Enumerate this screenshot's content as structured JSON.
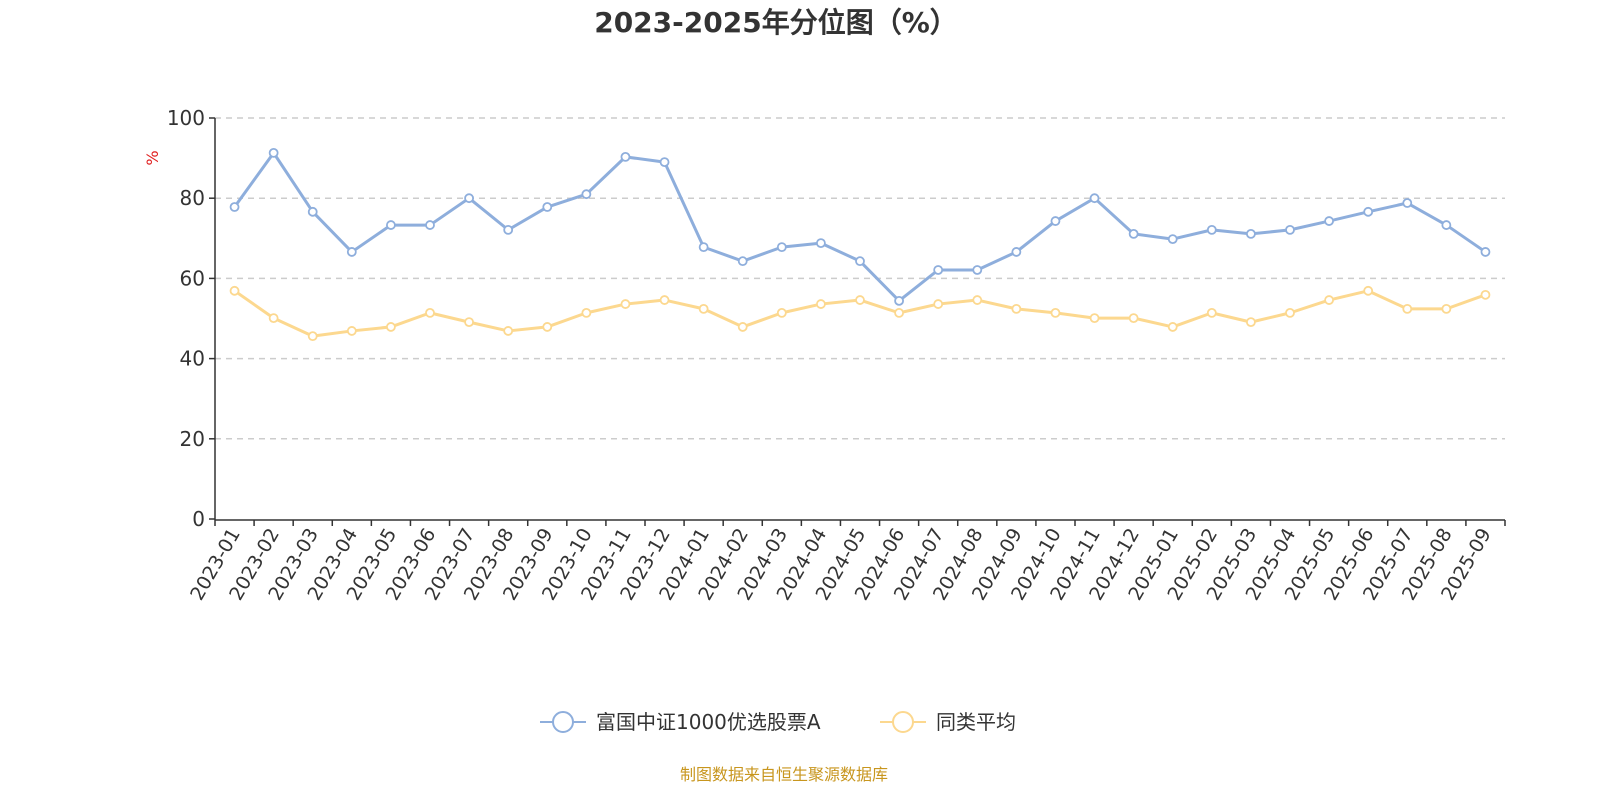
{
  "chart_data": {
    "type": "line",
    "title": "2023-2025年分位图（%）",
    "ylabel": "%",
    "xlabel": "",
    "ylim": [
      0,
      100
    ],
    "yticks": [
      0,
      20,
      40,
      60,
      80,
      100
    ],
    "grid": true,
    "legend_position": "bottom-center",
    "categories": [
      "2023-01",
      "2023-02",
      "2023-03",
      "2023-04",
      "2023-05",
      "2023-06",
      "2023-07",
      "2023-08",
      "2023-09",
      "2023-10",
      "2023-11",
      "2023-12",
      "2024-01",
      "2024-02",
      "2024-03",
      "2024-04",
      "2024-05",
      "2024-06",
      "2024-07",
      "2024-08",
      "2024-09",
      "2024-10",
      "2024-11",
      "2024-12",
      "2025-01",
      "2025-02",
      "2025-03",
      "2025-04",
      "2025-05",
      "2025-06",
      "2025-07",
      "2025-08",
      "2025-09"
    ],
    "series": [
      {
        "name": "富国中证1000优选股票A",
        "color": "#8eaedc",
        "values": [
          77.8,
          91.3,
          76.6,
          66.6,
          73.3,
          73.3,
          80.0,
          72.1,
          77.8,
          81.0,
          90.3,
          89.0,
          67.8,
          64.3,
          67.8,
          68.8,
          64.3,
          54.4,
          62.1,
          62.1,
          66.6,
          74.3,
          80.0,
          71.1,
          69.8,
          72.1,
          71.1,
          72.1,
          74.3,
          76.6,
          78.8,
          73.3,
          66.6
        ]
      },
      {
        "name": "同类平均",
        "color": "#fcd88f",
        "values": [
          56.9,
          50.1,
          45.6,
          46.9,
          47.9,
          51.4,
          49.1,
          46.9,
          47.9,
          51.4,
          53.6,
          54.6,
          52.4,
          47.9,
          51.4,
          53.6,
          54.6,
          51.4,
          53.6,
          54.6,
          52.4,
          51.4,
          50.1,
          50.1,
          47.9,
          51.4,
          49.1,
          51.4,
          54.6,
          56.9,
          52.4,
          52.4,
          55.9
        ]
      }
    ]
  },
  "footer": "制图数据来自恒生聚源数据库"
}
